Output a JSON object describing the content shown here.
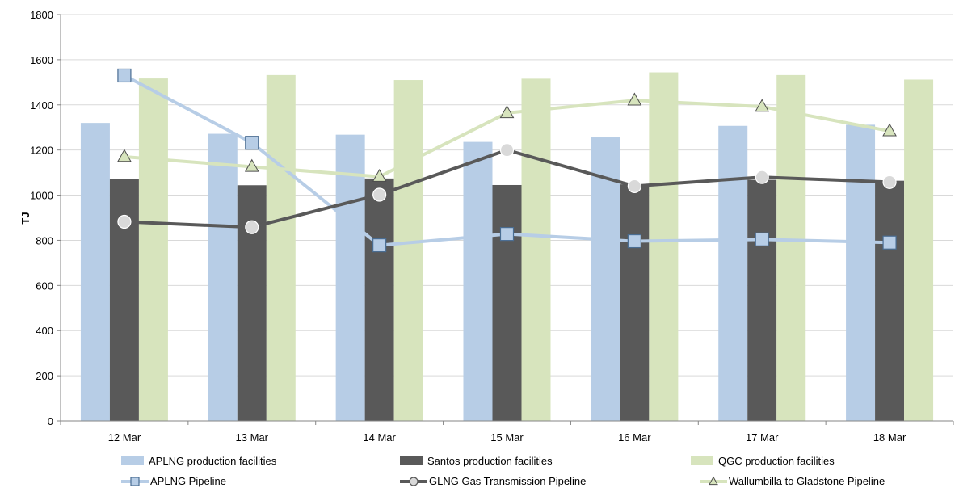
{
  "chart_data": {
    "type": "bar",
    "categories": [
      "12 Mar",
      "13 Mar",
      "14 Mar",
      "15 Mar",
      "16 Mar",
      "17 Mar",
      "18 Mar"
    ],
    "ylabel": "TJ",
    "ylim": [
      0,
      1800
    ],
    "yticks": [
      "0",
      "200",
      "400",
      "600",
      "800",
      "1000",
      "1200",
      "1400",
      "1600",
      "1800"
    ],
    "grid": "horizontal",
    "legend_position": "bottom",
    "bar_series": [
      {
        "name": "APLNG production facilities",
        "color": "#b7cde6",
        "values": [
          1320,
          1272,
          1268,
          1236,
          1256,
          1307,
          1312
        ]
      },
      {
        "name": "Santos production facilities",
        "color": "#595959",
        "values": [
          1072,
          1044,
          1074,
          1045,
          1048,
          1068,
          1064
        ]
      },
      {
        "name": "QGC production facilities",
        "color": "#d7e4bd",
        "values": [
          1517,
          1532,
          1510,
          1516,
          1544,
          1532,
          1512
        ]
      }
    ],
    "line_series": [
      {
        "name": "APLNG Pipeline",
        "color": "#b7cde6",
        "marker": "square",
        "marker_fill": "#b7cde6",
        "marker_stroke": "#4a6d92",
        "values": [
          1530,
          1232,
          778,
          828,
          796,
          804,
          790
        ]
      },
      {
        "name": "GLNG Gas Transmission Pipeline",
        "color": "#595959",
        "marker": "circle",
        "marker_fill": "#d9d9d9",
        "marker_stroke": "#ffffff",
        "values": [
          882,
          858,
          1002,
          1200,
          1040,
          1080,
          1058
        ]
      },
      {
        "name": "Wallumbilla to Gladstone Pipeline",
        "color": "#d7e4bd",
        "marker": "triangle",
        "marker_fill": "#d7e4bd",
        "marker_stroke": "#4d4d4d",
        "values": [
          1170,
          1126,
          1082,
          1364,
          1420,
          1392,
          1284
        ]
      }
    ]
  }
}
